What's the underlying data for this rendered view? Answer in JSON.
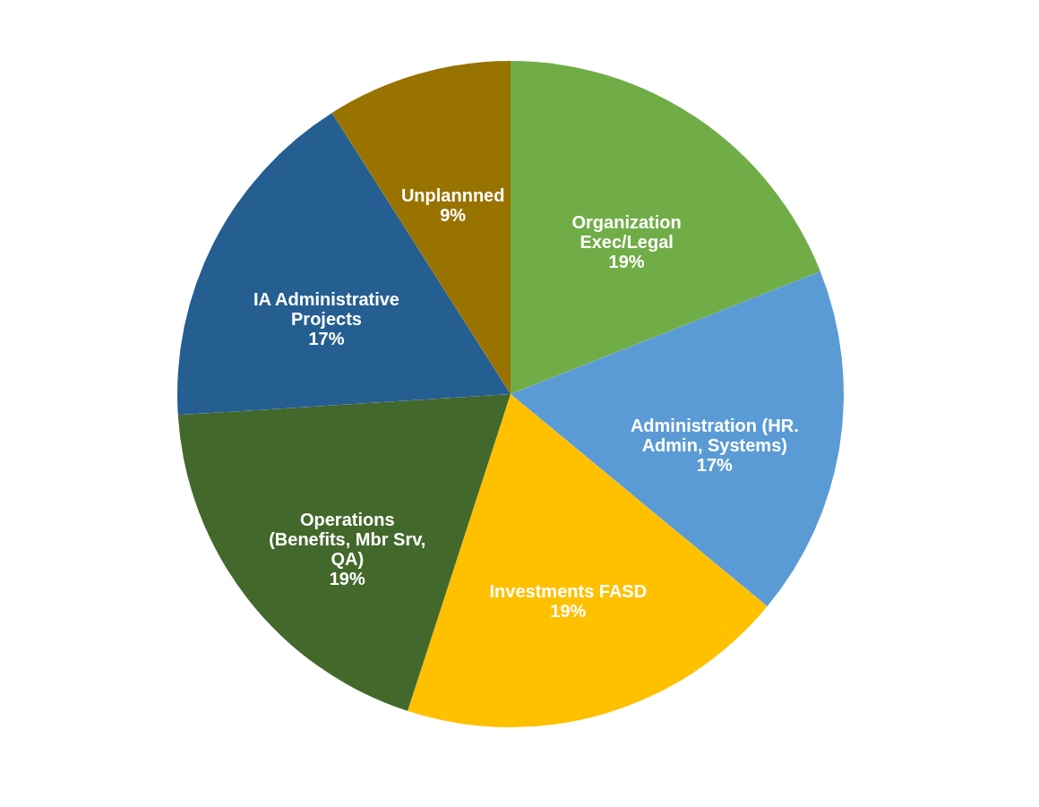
{
  "chart_data": {
    "type": "pie",
    "categories": [
      "Organization Exec/Legal",
      "Administration (HR. Admin, Systems)",
      "Investments FASD",
      "Operations (Benefits, Mbr Srv, QA)",
      "IA Administrative Projects",
      "Unplannned"
    ],
    "values": [
      19,
      17,
      19,
      19,
      17,
      9
    ],
    "colors": [
      "#70ad47",
      "#5b9bd5",
      "#ffc000",
      "#43682b",
      "#255e91",
      "#997300"
    ],
    "value_labels": [
      "19%",
      "17%",
      "19%",
      "19%",
      "17%",
      "9%"
    ],
    "legend": false
  }
}
